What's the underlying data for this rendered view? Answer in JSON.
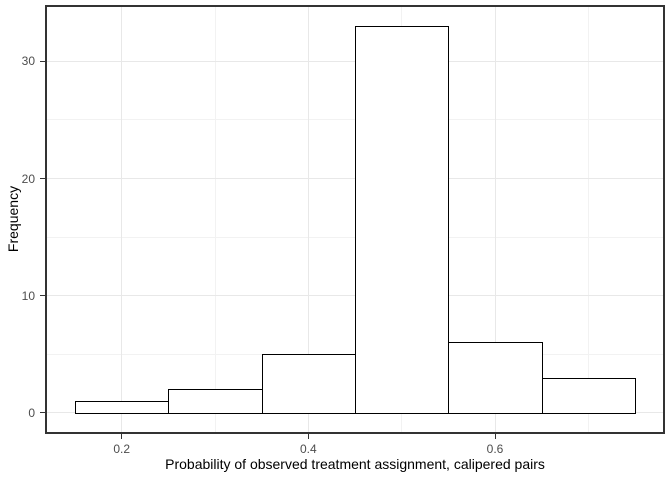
{
  "figure": {
    "background": "#ffffff"
  },
  "chart_data": {
    "type": "bar",
    "subtype": "histogram",
    "title": "",
    "xlabel": "Probability of observed treatment assignment, calipered pairs",
    "ylabel": "Frequency",
    "bin_edges": [
      0.15,
      0.25,
      0.35,
      0.45,
      0.55,
      0.65,
      0.75
    ],
    "counts": [
      1,
      2,
      5,
      33,
      6,
      3
    ],
    "x_tick_values": [
      0.2,
      0.4,
      0.6
    ],
    "x_tick_labels": [
      "0.2",
      "0.4",
      "0.6"
    ],
    "y_tick_values": [
      0,
      10,
      20,
      30
    ],
    "y_tick_labels": [
      "0",
      "10",
      "20",
      "30"
    ],
    "x_minor_values": [
      0.3,
      0.5,
      0.7
    ],
    "y_minor_values": [
      5,
      15,
      25
    ],
    "xlim": [
      0.12,
      0.78
    ],
    "ylim": [
      -1.65,
      34.65
    ],
    "grid": true,
    "legend_position": "none",
    "colors": {
      "bar_fill": "#ffffff",
      "bar_stroke": "#000000",
      "panel_border": "#333333",
      "grid_major": "#e8e8e8",
      "grid_minor": "#f2f2f2",
      "tick_mark": "#333333",
      "tick_label": "#4d4d4d",
      "axis_title": "#000000",
      "background": "#ffffff"
    }
  }
}
